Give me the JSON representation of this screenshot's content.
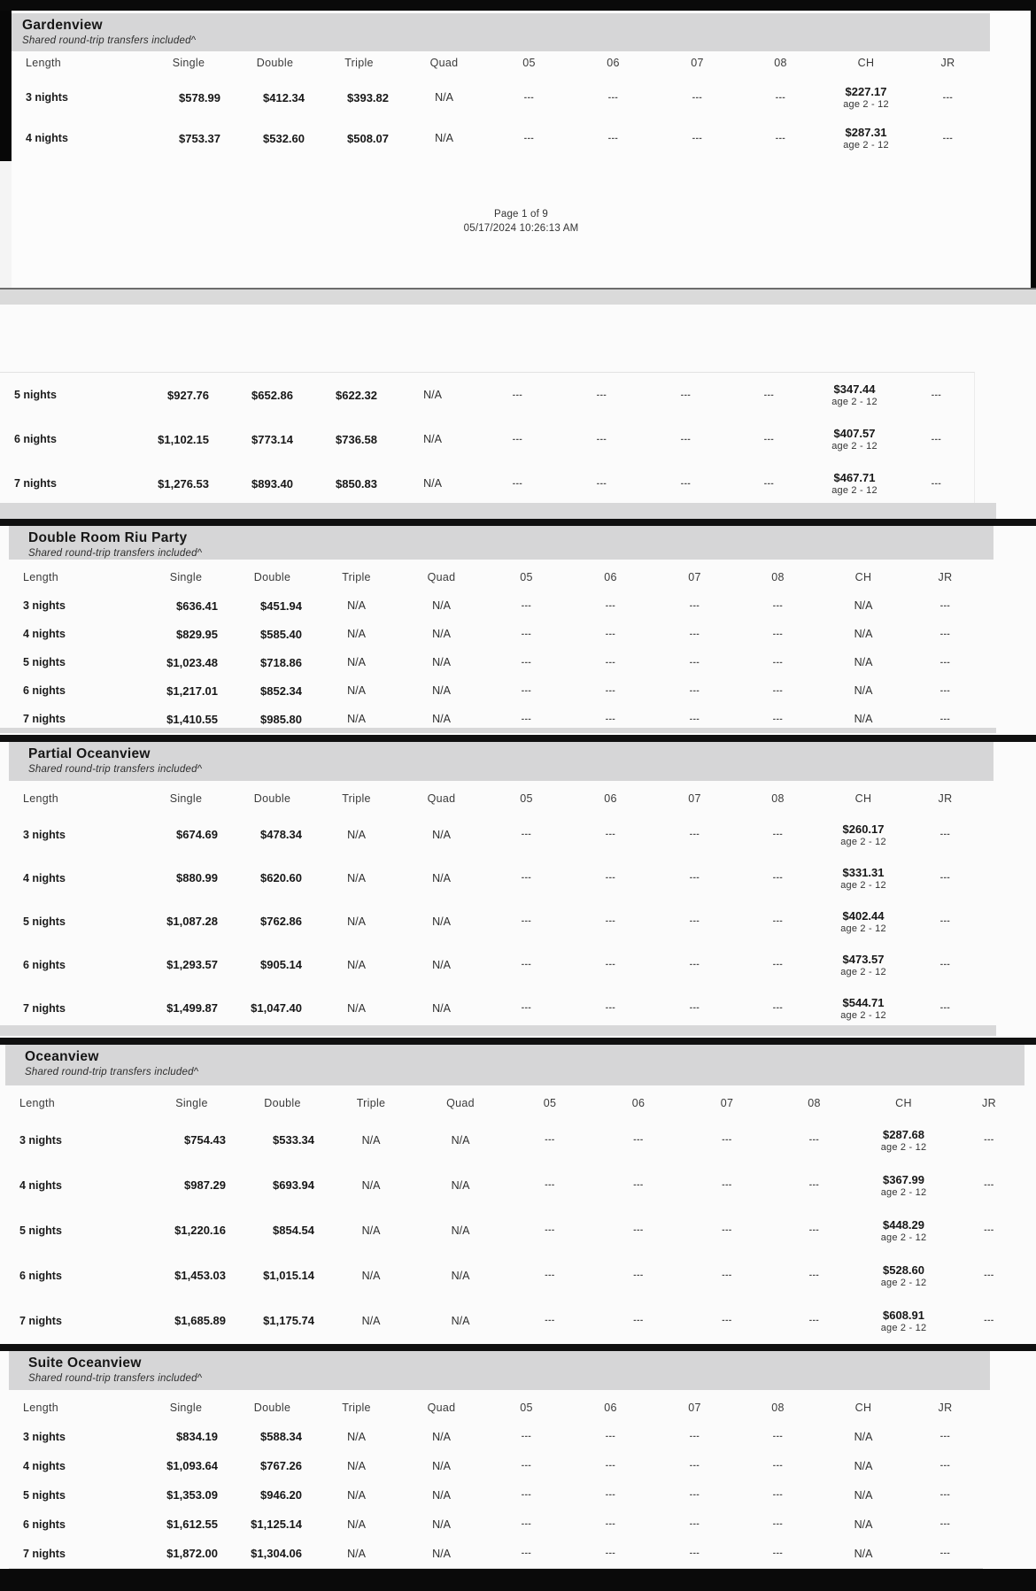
{
  "page": {
    "footer_line1": "Page 1 of 9",
    "footer_line2": "05/17/2024 10:26:13 AM"
  },
  "columns": [
    "Length",
    "Single",
    "Double",
    "Triple",
    "Quad",
    "05",
    "06",
    "07",
    "08",
    "CH",
    "JR"
  ],
  "column_keys": [
    "length",
    "single",
    "double",
    "triple",
    "quad",
    "05",
    "06",
    "07",
    "08",
    "ch",
    "jr"
  ],
  "sections": [
    {
      "id": "gardenview",
      "title": "Gardenview",
      "subtitle": "Shared round-trip transfers included^",
      "ch_sub": "age 2 - 12",
      "rows": [
        [
          "3 nights",
          "$578.99",
          "$412.34",
          "$393.82",
          "N/A",
          "---",
          "---",
          "---",
          "---",
          "$227.17",
          "---"
        ],
        [
          "4 nights",
          "$753.37",
          "$532.60",
          "$508.07",
          "N/A",
          "---",
          "---",
          "---",
          "---",
          "$287.31",
          "---"
        ]
      ]
    },
    {
      "id": "gardenview-continued",
      "title": "",
      "subtitle": "",
      "ch_sub": "age 2 - 12",
      "rows": [
        [
          "5 nights",
          "$927.76",
          "$652.86",
          "$622.32",
          "N/A",
          "---",
          "---",
          "---",
          "---",
          "$347.44",
          "---"
        ],
        [
          "6 nights",
          "$1,102.15",
          "$773.14",
          "$736.58",
          "N/A",
          "---",
          "---",
          "---",
          "---",
          "$407.57",
          "---"
        ],
        [
          "7 nights",
          "$1,276.53",
          "$893.40",
          "$850.83",
          "N/A",
          "---",
          "---",
          "---",
          "---",
          "$467.71",
          "---"
        ]
      ]
    },
    {
      "id": "double-room-riu-party",
      "title": "Double Room Riu Party",
      "subtitle": "Shared round-trip transfers included^",
      "ch_sub": "",
      "rows": [
        [
          "3 nights",
          "$636.41",
          "$451.94",
          "N/A",
          "N/A",
          "---",
          "---",
          "---",
          "---",
          "N/A",
          "---"
        ],
        [
          "4 nights",
          "$829.95",
          "$585.40",
          "N/A",
          "N/A",
          "---",
          "---",
          "---",
          "---",
          "N/A",
          "---"
        ],
        [
          "5 nights",
          "$1,023.48",
          "$718.86",
          "N/A",
          "N/A",
          "---",
          "---",
          "---",
          "---",
          "N/A",
          "---"
        ],
        [
          "6 nights",
          "$1,217.01",
          "$852.34",
          "N/A",
          "N/A",
          "---",
          "---",
          "---",
          "---",
          "N/A",
          "---"
        ],
        [
          "7 nights",
          "$1,410.55",
          "$985.80",
          "N/A",
          "N/A",
          "---",
          "---",
          "---",
          "---",
          "N/A",
          "---"
        ]
      ]
    },
    {
      "id": "partial-oceanview",
      "title": "Partial Oceanview",
      "subtitle": "Shared round-trip transfers included^",
      "ch_sub": "age 2 - 12",
      "rows": [
        [
          "3 nights",
          "$674.69",
          "$478.34",
          "N/A",
          "N/A",
          "---",
          "---",
          "---",
          "---",
          "$260.17",
          "---"
        ],
        [
          "4 nights",
          "$880.99",
          "$620.60",
          "N/A",
          "N/A",
          "---",
          "---",
          "---",
          "---",
          "$331.31",
          "---"
        ],
        [
          "5 nights",
          "$1,087.28",
          "$762.86",
          "N/A",
          "N/A",
          "---",
          "---",
          "---",
          "---",
          "$402.44",
          "---"
        ],
        [
          "6 nights",
          "$1,293.57",
          "$905.14",
          "N/A",
          "N/A",
          "---",
          "---",
          "---",
          "---",
          "$473.57",
          "---"
        ],
        [
          "7 nights",
          "$1,499.87",
          "$1,047.40",
          "N/A",
          "N/A",
          "---",
          "---",
          "---",
          "---",
          "$544.71",
          "---"
        ]
      ]
    },
    {
      "id": "oceanview",
      "title": "Oceanview",
      "subtitle": "Shared round-trip transfers included^",
      "ch_sub": "age 2 - 12",
      "rows": [
        [
          "3 nights",
          "$754.43",
          "$533.34",
          "N/A",
          "N/A",
          "---",
          "---",
          "---",
          "---",
          "$287.68",
          "---"
        ],
        [
          "4 nights",
          "$987.29",
          "$693.94",
          "N/A",
          "N/A",
          "---",
          "---",
          "---",
          "---",
          "$367.99",
          "---"
        ],
        [
          "5 nights",
          "$1,220.16",
          "$854.54",
          "N/A",
          "N/A",
          "---",
          "---",
          "---",
          "---",
          "$448.29",
          "---"
        ],
        [
          "6 nights",
          "$1,453.03",
          "$1,015.14",
          "N/A",
          "N/A",
          "---",
          "---",
          "---",
          "---",
          "$528.60",
          "---"
        ],
        [
          "7 nights",
          "$1,685.89",
          "$1,175.74",
          "N/A",
          "N/A",
          "---",
          "---",
          "---",
          "---",
          "$608.91",
          "---"
        ]
      ]
    },
    {
      "id": "suite-oceanview",
      "title": "Suite Oceanview",
      "subtitle": "Shared round-trip transfers included^",
      "ch_sub": "",
      "rows": [
        [
          "3 nights",
          "$834.19",
          "$588.34",
          "N/A",
          "N/A",
          "---",
          "---",
          "---",
          "---",
          "N/A",
          "---"
        ],
        [
          "4 nights",
          "$1,093.64",
          "$767.26",
          "N/A",
          "N/A",
          "---",
          "---",
          "---",
          "---",
          "N/A",
          "---"
        ],
        [
          "5 nights",
          "$1,353.09",
          "$946.20",
          "N/A",
          "N/A",
          "---",
          "---",
          "---",
          "---",
          "N/A",
          "---"
        ],
        [
          "6 nights",
          "$1,612.55",
          "$1,125.14",
          "N/A",
          "N/A",
          "---",
          "---",
          "---",
          "---",
          "N/A",
          "---"
        ],
        [
          "7 nights",
          "$1,872.00",
          "$1,304.06",
          "N/A",
          "N/A",
          "---",
          "---",
          "---",
          "---",
          "N/A",
          "---"
        ]
      ]
    }
  ]
}
